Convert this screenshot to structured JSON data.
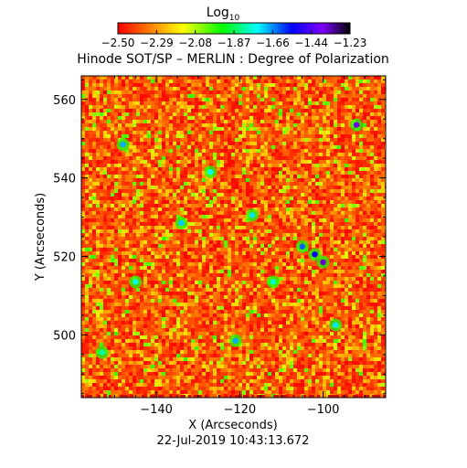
{
  "chart_data": {
    "type": "heatmap",
    "title": "Hinode SOT/SP – MERLIN : Degree of Polarization",
    "xlabel": "X (Arcseconds)",
    "ylabel": "Y (Arcseconds)",
    "timestamp": "22-Jul-2019 10:43:13.672",
    "xlim": [
      -158,
      -85
    ],
    "ylim": [
      484,
      566
    ],
    "x_ticks": [
      "-140",
      "-120",
      "-100"
    ],
    "y_ticks": [
      "560",
      "540",
      "520",
      "500"
    ],
    "colorbar": {
      "label": "Log",
      "label_subscript": "10",
      "range": [
        -2.5,
        -1.23
      ],
      "ticks": [
        "−2.50",
        "−2.29",
        "−2.08",
        "−1.87",
        "−1.66",
        "−1.44",
        "−1.23"
      ],
      "colormap": [
        "#ff0000",
        "#ff8000",
        "#ffff00",
        "#00ff00",
        "#00ffff",
        "#0000ff",
        "#8000ff",
        "#000000"
      ]
    },
    "field_background_value": -2.35,
    "features": [
      {
        "x": -100,
        "y": 518.5,
        "value": -1.35
      },
      {
        "x": -102,
        "y": 520.5,
        "value": -1.55
      },
      {
        "x": -105,
        "y": 522.5,
        "value": -1.62
      },
      {
        "x": -92,
        "y": 553.5,
        "value": -1.4
      },
      {
        "x": -148,
        "y": 548.5,
        "value": -1.68
      },
      {
        "x": -134,
        "y": 528.5,
        "value": -1.7
      },
      {
        "x": -117,
        "y": 530.5,
        "value": -1.72
      },
      {
        "x": -145,
        "y": 513.5,
        "value": -1.75
      },
      {
        "x": -127,
        "y": 541.5,
        "value": -1.74
      },
      {
        "x": -97,
        "y": 502.5,
        "value": -1.72
      },
      {
        "x": -121,
        "y": 498.5,
        "value": -1.68
      },
      {
        "x": -112,
        "y": 513.5,
        "value": -1.78
      },
      {
        "x": -153,
        "y": 495.5,
        "value": -1.8
      }
    ]
  }
}
